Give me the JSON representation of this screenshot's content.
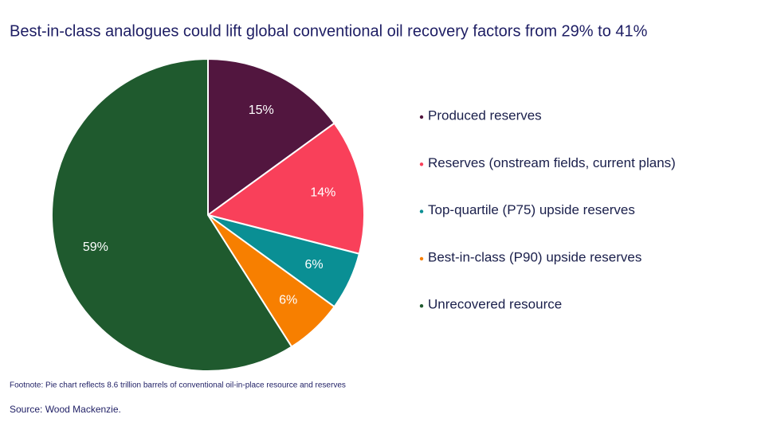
{
  "chart_data": {
    "type": "pie",
    "title": "Best-in-class analogues could lift global conventional oil recovery factors from 29% to 41%",
    "categories": [
      "Produced reserves",
      "Reserves (onstream fields, current plans)",
      "Top-quartile (P75) upside reserves",
      "Best-in-class (P90) upside reserves",
      "Unrecovered resource"
    ],
    "values": [
      15,
      14,
      6,
      6,
      59
    ],
    "value_labels": [
      "15%",
      "14%",
      "6%",
      "6%",
      "59%"
    ],
    "colors": [
      "#52163f",
      "#f9405a",
      "#0a8f94",
      "#f77f00",
      "#1f5a2e"
    ],
    "footnote": "Footnote: Pie chart reflects 8.6 trillion barrels of conventional oil-in-place resource and reserves",
    "source": "Source: Wood Mackenzie."
  }
}
